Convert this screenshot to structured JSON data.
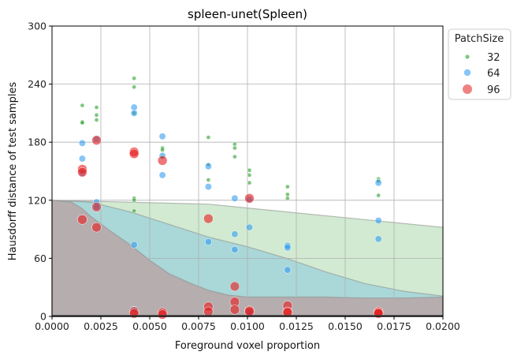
{
  "chart_data": {
    "type": "scatter",
    "title": "spleen-unet(Spleen)",
    "xlabel": "Foreground voxel proportion",
    "ylabel": "Hausdorff distance of test samples",
    "xlim": [
      0,
      0.02
    ],
    "ylim": [
      0,
      300
    ],
    "grid": true,
    "x_ticks": [
      "0.0000",
      "0.0025",
      "0.0050",
      "0.0075",
      "0.0100",
      "0.0125",
      "0.0150",
      "0.0175",
      "0.0200"
    ],
    "y_ticks": [
      "0",
      "60",
      "120",
      "180",
      "240",
      "300"
    ],
    "legend": {
      "title": "PatchSize",
      "placement": "outside-upper-right",
      "entries": [
        "32",
        "64",
        "96"
      ]
    },
    "series": [
      {
        "name": "32",
        "color": "#2ca02c",
        "points": [
          [
            0.00155,
            218
          ],
          [
            0.00155,
            201
          ],
          [
            0.00155,
            200
          ],
          [
            0.00228,
            216
          ],
          [
            0.00228,
            208
          ],
          [
            0.00228,
            203
          ],
          [
            0.0042,
            246
          ],
          [
            0.0042,
            237
          ],
          [
            0.0042,
            210
          ],
          [
            0.0042,
            122
          ],
          [
            0.0042,
            120
          ],
          [
            0.0042,
            109
          ],
          [
            0.00565,
            174
          ],
          [
            0.00565,
            172
          ],
          [
            0.00565,
            165
          ],
          [
            0.008,
            185
          ],
          [
            0.008,
            157
          ],
          [
            0.008,
            141
          ],
          [
            0.00935,
            178
          ],
          [
            0.00935,
            174
          ],
          [
            0.00935,
            165
          ],
          [
            0.0101,
            151
          ],
          [
            0.0101,
            146
          ],
          [
            0.0101,
            138
          ],
          [
            0.01205,
            134
          ],
          [
            0.01205,
            126
          ],
          [
            0.01205,
            122
          ],
          [
            0.0167,
            142
          ],
          [
            0.0167,
            140
          ],
          [
            0.0167,
            125
          ]
        ]
      },
      {
        "name": "64",
        "color": "#2196f3",
        "points": [
          [
            0.00155,
            179
          ],
          [
            0.00155,
            163
          ],
          [
            0.00155,
            148
          ],
          [
            0.00228,
            183
          ],
          [
            0.00228,
            118
          ],
          [
            0.00228,
            113
          ],
          [
            0.0042,
            216
          ],
          [
            0.0042,
            210
          ],
          [
            0.0042,
            74
          ],
          [
            0.0042,
            7
          ],
          [
            0.00565,
            186
          ],
          [
            0.00565,
            166
          ],
          [
            0.00565,
            146
          ],
          [
            0.008,
            155
          ],
          [
            0.008,
            134
          ],
          [
            0.008,
            77
          ],
          [
            0.00935,
            122
          ],
          [
            0.00935,
            85
          ],
          [
            0.00935,
            69
          ],
          [
            0.0101,
            121
          ],
          [
            0.0101,
            92
          ],
          [
            0.0101,
            4
          ],
          [
            0.01205,
            73
          ],
          [
            0.01205,
            71
          ],
          [
            0.01205,
            48
          ],
          [
            0.0167,
            138
          ],
          [
            0.0167,
            99
          ],
          [
            0.0167,
            80
          ]
        ]
      },
      {
        "name": "96",
        "color": "#e41a1c",
        "points": [
          [
            0.00155,
            152
          ],
          [
            0.00155,
            149
          ],
          [
            0.00155,
            100
          ],
          [
            0.00228,
            182
          ],
          [
            0.00228,
            113
          ],
          [
            0.00228,
            92
          ],
          [
            0.0042,
            170
          ],
          [
            0.0042,
            168
          ],
          [
            0.0042,
            5
          ],
          [
            0.0042,
            3
          ],
          [
            0.00565,
            161
          ],
          [
            0.00565,
            4
          ],
          [
            0.00565,
            2
          ],
          [
            0.008,
            101
          ],
          [
            0.008,
            10
          ],
          [
            0.008,
            5
          ],
          [
            0.00935,
            31
          ],
          [
            0.00935,
            15
          ],
          [
            0.00935,
            7
          ],
          [
            0.0101,
            122
          ],
          [
            0.0101,
            6
          ],
          [
            0.0101,
            5
          ],
          [
            0.01205,
            11
          ],
          [
            0.01205,
            5
          ],
          [
            0.01205,
            4
          ],
          [
            0.0167,
            5
          ],
          [
            0.0167,
            4
          ],
          [
            0.0167,
            3
          ]
        ]
      }
    ],
    "bands": [
      {
        "color": "#2ca02c",
        "x": [
          0,
          0.002,
          0.004,
          0.006,
          0.008,
          0.01,
          0.012,
          0.014,
          0.016,
          0.018,
          0.02
        ],
        "y": [
          120,
          119,
          118,
          117,
          116,
          112,
          108,
          104,
          100,
          96,
          92
        ]
      },
      {
        "color": "#2196f3",
        "x": [
          0,
          0.002,
          0.004,
          0.006,
          0.008,
          0.01,
          0.012,
          0.014,
          0.016,
          0.018,
          0.02
        ],
        "y": [
          120,
          118,
          108,
          95,
          82,
          72,
          60,
          46,
          34,
          26,
          21
        ]
      },
      {
        "color": "#e41a1c",
        "x": [
          0,
          0.001,
          0.0015,
          0.002,
          0.003,
          0.004,
          0.005,
          0.006,
          0.007,
          0.008,
          0.009,
          0.01,
          0.012,
          0.014,
          0.016,
          0.018,
          0.02
        ],
        "y": [
          120,
          118,
          112,
          103,
          88,
          74,
          58,
          44,
          35,
          27,
          22,
          20,
          20,
          20,
          19,
          19,
          20
        ]
      }
    ]
  }
}
